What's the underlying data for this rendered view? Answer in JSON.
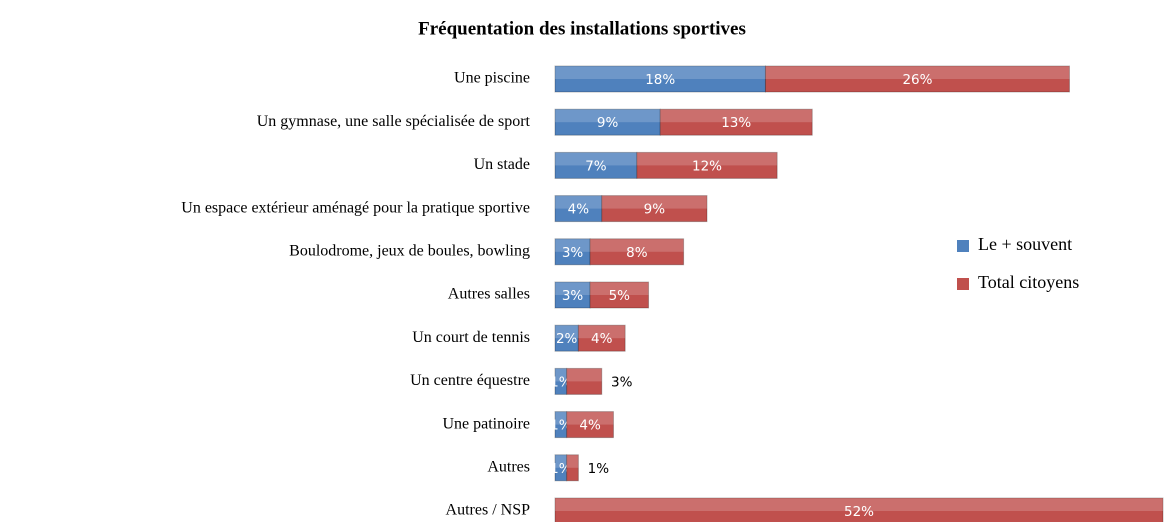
{
  "chart_data": {
    "type": "bar",
    "orientation": "horizontal",
    "stacked": true,
    "title": "Fréquentation des installations sportives",
    "categories": [
      "Une piscine",
      "Un gymnase, une salle spécialisée de sport",
      "Un stade",
      "Un espace extérieur aménagé pour la pratique sportive",
      "Boulodrome, jeux de boules, bowling",
      "Autres salles",
      "Un court de tennis",
      "Un centre équestre",
      "Une patinoire",
      "Autres",
      "Autres / NSP"
    ],
    "series": [
      {
        "name": "Le + souvent",
        "color": "#4f81bd",
        "values": [
          18,
          9,
          7,
          4,
          3,
          3,
          2,
          1,
          1,
          1,
          null
        ],
        "value_labels": [
          "18%",
          "9%",
          "7%",
          "4%",
          "3%",
          "3%",
          "2%",
          "1%",
          "1%",
          "1%",
          null
        ]
      },
      {
        "name": "Total citoyens",
        "color": "#c0504d",
        "values": [
          26,
          13,
          12,
          9,
          8,
          5,
          4,
          3,
          4,
          1,
          52
        ],
        "value_labels": [
          "26%",
          "13%",
          "12%",
          "9%",
          "8%",
          "5%",
          "4%",
          "3%",
          "4%",
          "1%",
          "52%"
        ]
      }
    ],
    "legend": "right"
  }
}
